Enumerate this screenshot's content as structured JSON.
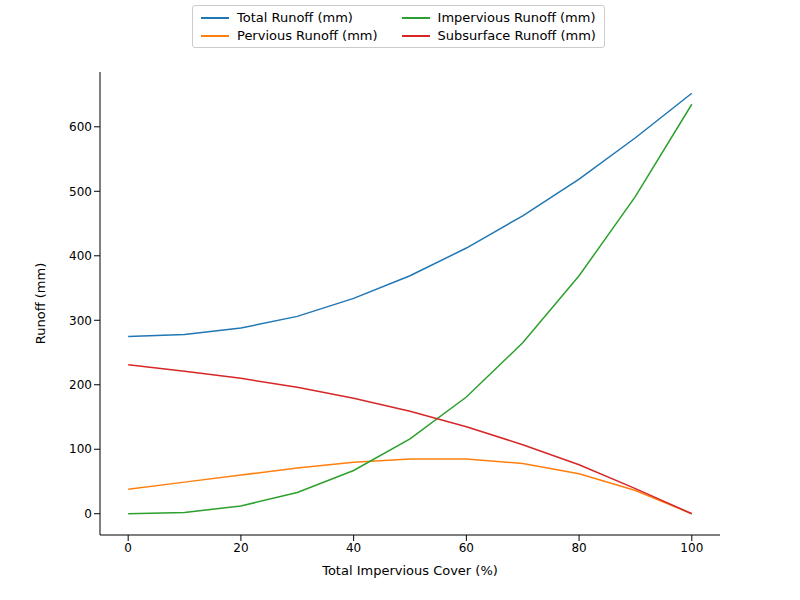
{
  "chart_data": {
    "type": "line",
    "x_label": "Total Impervious Cover (%)",
    "y_label": "Runoff (mm)",
    "x": [
      0,
      10,
      20,
      30,
      40,
      50,
      60,
      70,
      80,
      90,
      100
    ],
    "series": [
      {
        "name": "Total Runoff (mm)",
        "color": "#1f77b4",
        "values": [
          275,
          278,
          288,
          306,
          334,
          369,
          412,
          462,
          519,
          583,
          652
        ]
      },
      {
        "name": "Pervious Runoff (mm)",
        "color": "#ff7f0e",
        "values": [
          38,
          49,
          60,
          71,
          80,
          85,
          85,
          78,
          62,
          36,
          0
        ]
      },
      {
        "name": "Impervious Runoff (mm)",
        "color": "#2ca02c",
        "values": [
          0,
          2,
          12,
          33,
          67,
          116,
          181,
          265,
          369,
          492,
          635
        ]
      },
      {
        "name": "Subsurface Runoff (mm)",
        "color": "#d62728",
        "values": [
          231,
          221,
          210,
          196,
          179,
          159,
          135,
          107,
          76,
          39,
          0
        ]
      }
    ],
    "xlim": [
      -5,
      105
    ],
    "xticks": [
      0,
      20,
      40,
      60,
      80,
      100
    ],
    "ylim": [
      -33,
      685
    ],
    "yticks": [
      0,
      100,
      200,
      300,
      400,
      500,
      600
    ],
    "grid": false,
    "legend": "top"
  }
}
